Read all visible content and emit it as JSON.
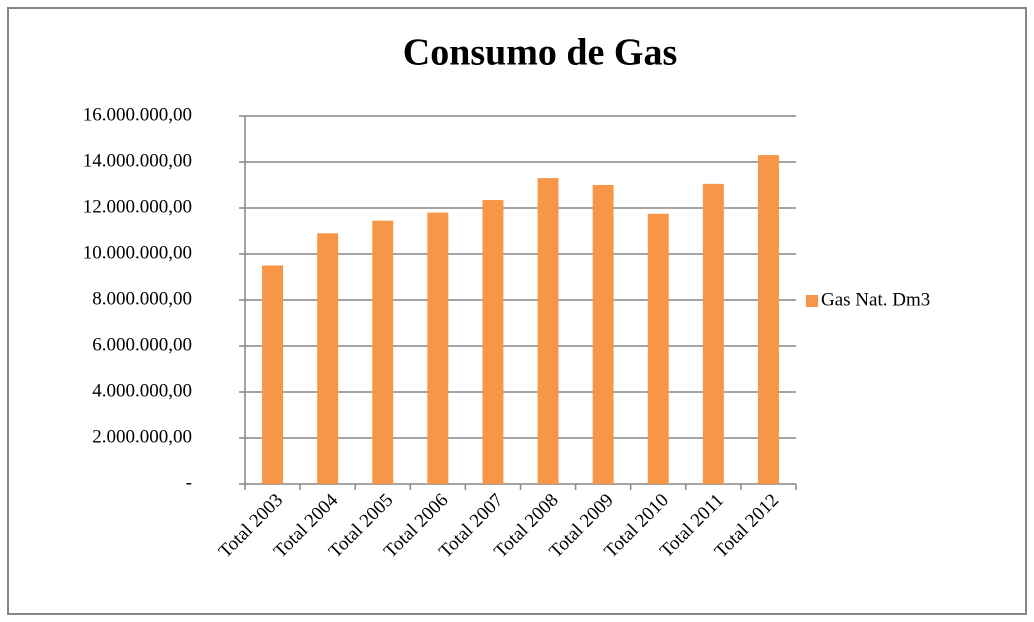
{
  "chart_data": {
    "type": "bar",
    "title": "Consumo de Gas",
    "categories": [
      "Total 2003",
      "Total 2004",
      "Total 2005",
      "Total 2006",
      "Total 2007",
      "Total 2008",
      "Total 2009",
      "Total 2010",
      "Total 2011",
      "Total 2012"
    ],
    "series": [
      {
        "name": "Gas Nat. Dm3",
        "color": "#f79646",
        "values": [
          9500000,
          10900000,
          11450000,
          11800000,
          12350000,
          13300000,
          13000000,
          11750000,
          13050000,
          14300000
        ]
      }
    ],
    "ylim": [
      0,
      16000000
    ],
    "yticks": [
      {
        "value": 0,
        "label": "-"
      },
      {
        "value": 2000000,
        "label": "2.000.000,00"
      },
      {
        "value": 4000000,
        "label": "4.000.000,00"
      },
      {
        "value": 6000000,
        "label": "6.000.000,00"
      },
      {
        "value": 8000000,
        "label": "8.000.000,00"
      },
      {
        "value": 10000000,
        "label": "10.000.000,00"
      },
      {
        "value": 12000000,
        "label": "12.000.000,00"
      },
      {
        "value": 14000000,
        "label": "14.000.000,00"
      },
      {
        "value": 16000000,
        "label": "16.000.000,00"
      }
    ],
    "grid": true,
    "legend": "right"
  }
}
